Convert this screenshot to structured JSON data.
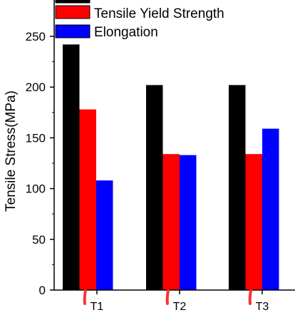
{
  "chart_data": {
    "type": "bar",
    "ylabel": "Tensile Stress(MPa)",
    "ylim": [
      0,
      250
    ],
    "yticks": [
      "0",
      "50",
      "100",
      "150",
      "200",
      "250"
    ],
    "categories": [
      "T1",
      "T2",
      "T3"
    ],
    "series": [
      {
        "name": "",
        "color": "#000000",
        "values": [
          242,
          202,
          202
        ]
      },
      {
        "name": "Tensile Yield Strength",
        "color": "#ff0000",
        "values": [
          178,
          134,
          134
        ]
      },
      {
        "name": "Elongation",
        "color": "#0000ff",
        "values": [
          108,
          133,
          159
        ]
      }
    ],
    "legend_position": "top-left",
    "grid": false
  }
}
